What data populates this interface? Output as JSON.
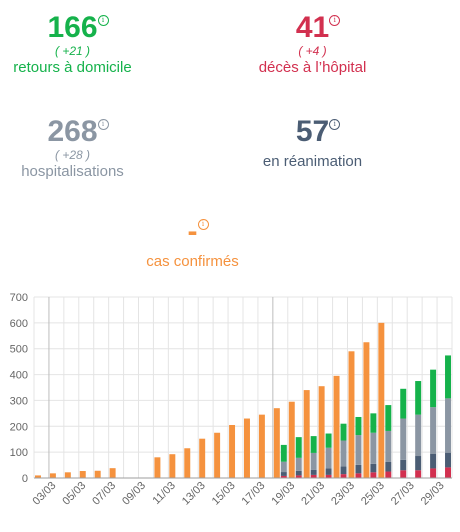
{
  "stats": {
    "retours": {
      "value": "166",
      "delta": "( +21 )",
      "label": "retours à domicile"
    },
    "deces": {
      "value": "41",
      "delta": "( +4 )",
      "label": "décès à l’hôpital"
    },
    "hospitalisations": {
      "value": "268",
      "delta": "( +28 )",
      "label": "hospitalisations"
    },
    "reanimation": {
      "value": "57",
      "label": "en réanimation"
    },
    "cas": {
      "value": "-",
      "label": "cas confirmés"
    }
  },
  "info_glyph": "i",
  "colors": {
    "cas": "#f5923e",
    "retours": "#15b24b",
    "hospitalisations": "#8b96a3",
    "reanimation": "#4b5d74",
    "deces": "#d2304f",
    "grid": "#e4e4e4"
  },
  "chart_data": {
    "type": "bar",
    "stacked_groups": true,
    "x": [
      "02/03",
      "03/03",
      "04/03",
      "05/03",
      "06/03",
      "07/03",
      "08/03",
      "09/03",
      "10/03",
      "11/03",
      "12/03",
      "13/03",
      "14/03",
      "15/03",
      "16/03",
      "17/03",
      "18/03",
      "19/03",
      "20/03",
      "21/03",
      "22/03",
      "23/03",
      "24/03",
      "25/03",
      "26/03",
      "27/03",
      "28/03",
      "29/03"
    ],
    "x_tick_labels": [
      "03/03",
      "05/03",
      "07/03",
      "09/03",
      "11/03",
      "13/03",
      "15/03",
      "17/03",
      "19/03",
      "21/03",
      "23/03",
      "25/03",
      "27/03",
      "29/03"
    ],
    "ylim": [
      0,
      700
    ],
    "yticks": [
      0,
      100,
      200,
      300,
      400,
      500,
      600,
      700
    ],
    "grid": true,
    "series": [
      {
        "name": "cas confirmés",
        "stack": "cas",
        "values": [
          10,
          18,
          22,
          27,
          28,
          38,
          null,
          null,
          80,
          92,
          115,
          152,
          175,
          205,
          230,
          245,
          270,
          295,
          340,
          355,
          395,
          490,
          525,
          600,
          null,
          null,
          null,
          null
        ]
      },
      {
        "name": "décès à l’hôpital",
        "stack": "hospital",
        "values": [
          null,
          null,
          null,
          null,
          null,
          null,
          null,
          null,
          null,
          null,
          null,
          null,
          null,
          null,
          null,
          null,
          8,
          10,
          12,
          12,
          15,
          18,
          22,
          25,
          30,
          30,
          37,
          41
        ]
      },
      {
        "name": "en réanimation",
        "stack": "hospital",
        "values": [
          null,
          null,
          null,
          null,
          null,
          null,
          null,
          null,
          null,
          null,
          null,
          null,
          null,
          null,
          null,
          null,
          15,
          18,
          20,
          25,
          30,
          33,
          33,
          37,
          40,
          55,
          57,
          57
        ]
      },
      {
        "name": "hospitalisations",
        "stack": "hospital",
        "values": [
          null,
          null,
          null,
          null,
          null,
          null,
          null,
          null,
          null,
          null,
          null,
          null,
          null,
          null,
          null,
          null,
          40,
          50,
          65,
          80,
          100,
          115,
          120,
          120,
          160,
          160,
          180,
          210
        ]
      },
      {
        "name": "retours à domicile",
        "stack": "hospital",
        "values": [
          null,
          null,
          null,
          null,
          null,
          null,
          null,
          null,
          null,
          null,
          null,
          null,
          null,
          null,
          null,
          null,
          65,
          80,
          65,
          55,
          65,
          70,
          75,
          100,
          115,
          130,
          145,
          166
        ]
      }
    ]
  }
}
